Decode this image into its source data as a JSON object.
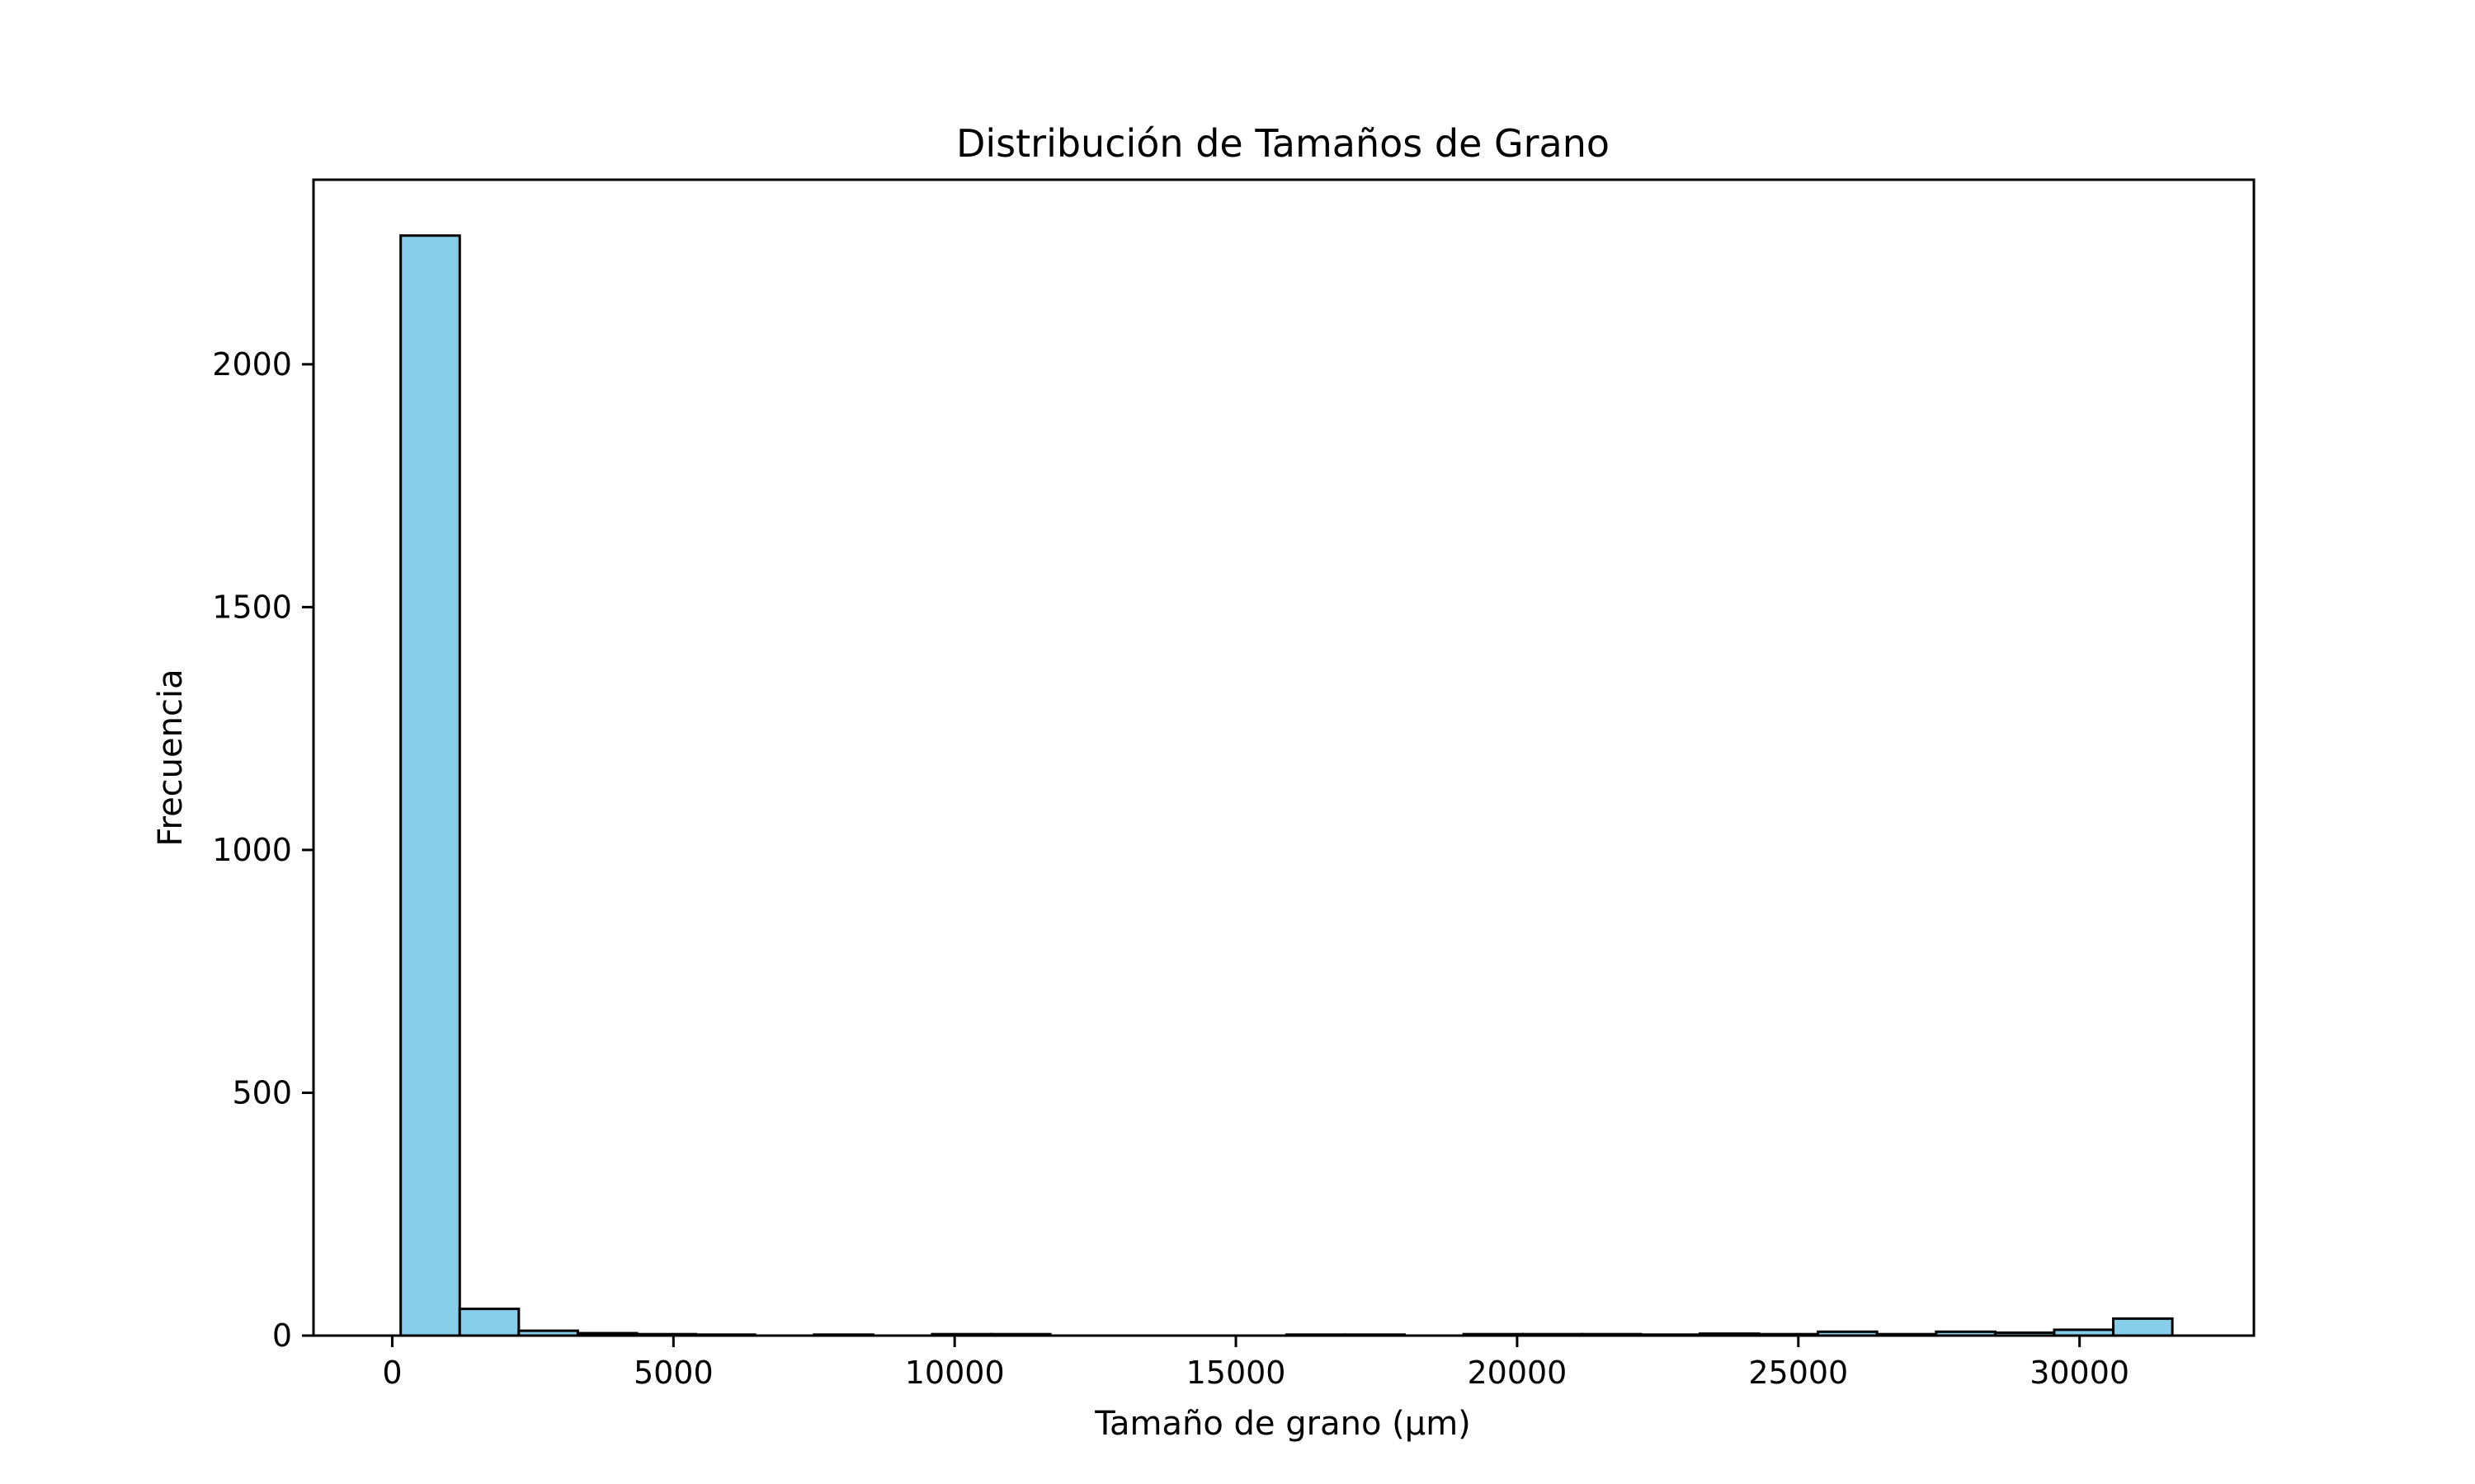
{
  "chart_data": {
    "type": "bar",
    "title": "Distribución de Tamaños de Grano",
    "xlabel": "Tamaño de grano (µm)",
    "ylabel": "Frecuencia",
    "xlim": [
      -1400,
      33100
    ],
    "ylim": [
      0,
      2380
    ],
    "xticks": [
      0,
      5000,
      10000,
      15000,
      20000,
      25000,
      30000
    ],
    "yticks": [
      0,
      500,
      1000,
      1500,
      2000
    ],
    "bin_start": 150,
    "bin_width": 1050,
    "counts": [
      2265,
      55,
      10,
      5,
      3,
      2,
      0,
      2,
      0,
      3,
      3,
      0,
      0,
      0,
      0,
      2,
      2,
      0,
      3,
      3,
      3,
      2,
      4,
      3,
      8,
      3,
      8,
      6,
      12,
      35
    ],
    "bar_color": "#87CEEB",
    "edge_color": "#000000",
    "grid": false
  }
}
